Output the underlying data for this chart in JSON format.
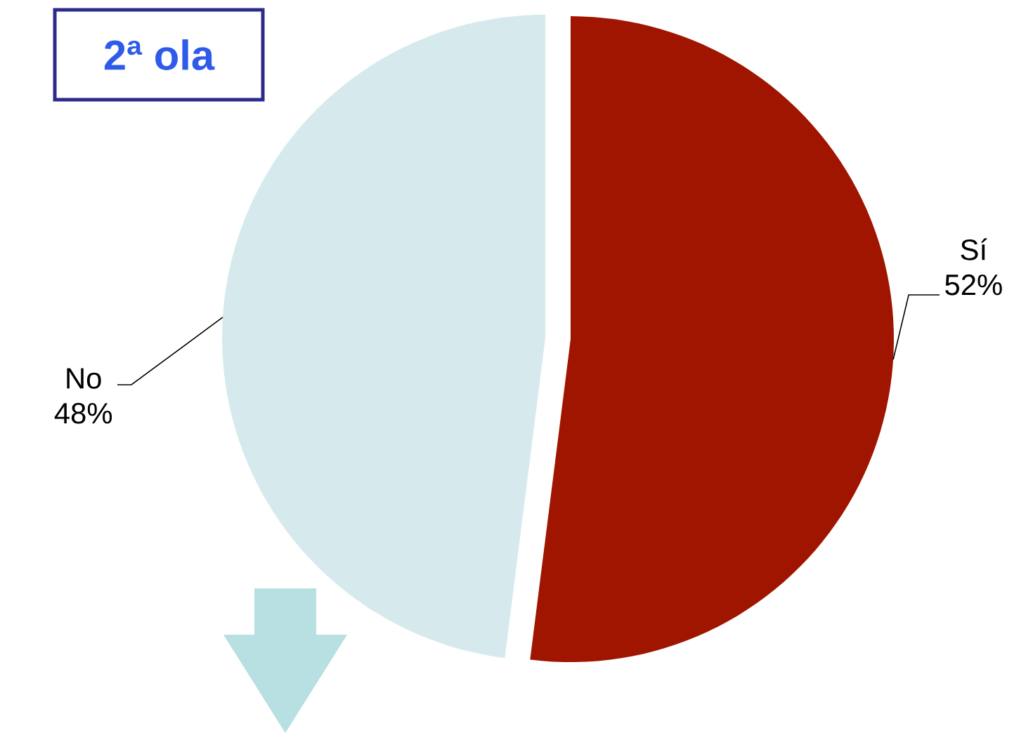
{
  "chart_data": {
    "type": "pie",
    "title": "2ª ola",
    "categories": [
      "Sí",
      "No"
    ],
    "values": [
      52,
      48
    ],
    "value_labels": [
      "52%",
      "48%"
    ],
    "colors": [
      "#a01500",
      "#d6eaee"
    ]
  }
}
